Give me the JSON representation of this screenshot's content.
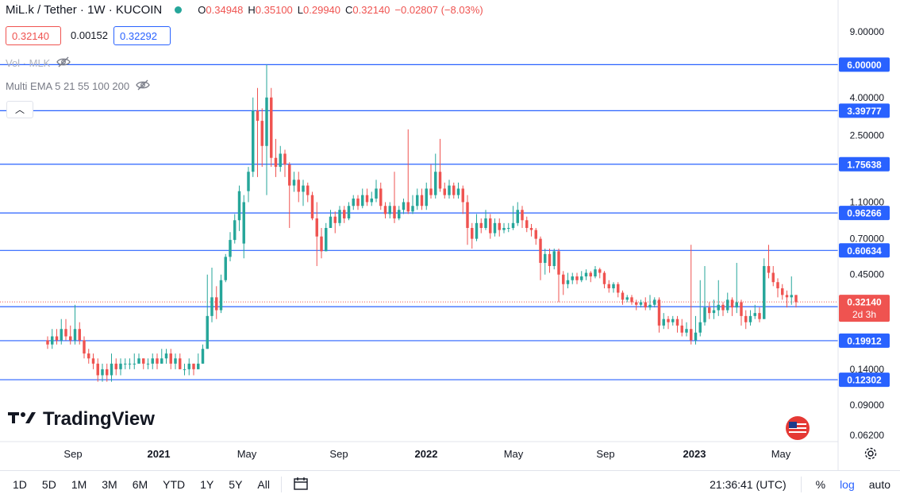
{
  "header": {
    "symbol": "MiL.k / Tether · 1W · KUCOIN",
    "ohlc": {
      "open_label": "O",
      "open": "0.34948",
      "high_label": "H",
      "high": "0.35100",
      "low_label": "L",
      "low": "0.29940",
      "close_label": "C",
      "close": "0.32140",
      "change": "−0.02807 (−8.03%)"
    },
    "status_color": "#26a69a"
  },
  "price_boxes": {
    "bid": "0.32140",
    "spread": "0.00152",
    "ask": "0.32292"
  },
  "indicators": [
    {
      "label": "Vol · MLK",
      "icon": "eye-crossed-icon"
    },
    {
      "label": "Multi EMA 5 21 55 100 200",
      "icon": "eye-crossed-icon"
    }
  ],
  "logo_text": "TradingView",
  "bottom": {
    "timeframes": [
      "1D",
      "5D",
      "1M",
      "3M",
      "6M",
      "YTD",
      "1Y",
      "5Y",
      "All"
    ],
    "time": "21:36:41 (UTC)",
    "percent": "%",
    "log": "log",
    "auto": "auto"
  },
  "chart_data": {
    "type": "candlestick",
    "scale": "log",
    "ylim": [
      0.062,
      9.0
    ],
    "y_ticks": [
      "9.00000",
      "4.00000",
      "2.50000",
      "1.10000",
      "0.70000",
      "0.45000",
      "0.14000",
      "0.09000",
      "0.06200"
    ],
    "x_ticks": [
      "Sep",
      "2021",
      "May",
      "Sep",
      "2022",
      "May",
      "Sep",
      "2023",
      "May"
    ],
    "up_color": "#26a69a",
    "down_color": "#ef5350",
    "level_color": "#2962ff",
    "levels": [
      "6.00000",
      "3.39777",
      "1.75638",
      "0.96266",
      "0.60634",
      "0.30291",
      "0.19912",
      "0.12302"
    ],
    "last_price": "0.32140",
    "countdown": "2d 3h",
    "candles": [
      [
        0.2,
        0.19,
        0.21,
        0.18
      ],
      [
        0.19,
        0.21,
        0.23,
        0.18
      ],
      [
        0.21,
        0.2,
        0.23,
        0.19
      ],
      [
        0.2,
        0.23,
        0.26,
        0.19
      ],
      [
        0.23,
        0.21,
        0.26,
        0.2
      ],
      [
        0.21,
        0.2,
        0.24,
        0.19
      ],
      [
        0.2,
        0.23,
        0.31,
        0.19
      ],
      [
        0.23,
        0.2,
        0.25,
        0.19
      ],
      [
        0.2,
        0.17,
        0.21,
        0.16
      ],
      [
        0.17,
        0.16,
        0.18,
        0.15
      ],
      [
        0.16,
        0.15,
        0.17,
        0.14
      ],
      [
        0.15,
        0.13,
        0.16,
        0.12
      ],
      [
        0.13,
        0.14,
        0.15,
        0.12
      ],
      [
        0.14,
        0.13,
        0.15,
        0.12
      ],
      [
        0.13,
        0.15,
        0.17,
        0.12
      ],
      [
        0.15,
        0.14,
        0.16,
        0.13
      ],
      [
        0.14,
        0.15,
        0.16,
        0.13
      ],
      [
        0.15,
        0.15,
        0.16,
        0.14
      ],
      [
        0.15,
        0.15,
        0.16,
        0.14
      ],
      [
        0.15,
        0.15,
        0.17,
        0.14
      ],
      [
        0.15,
        0.16,
        0.17,
        0.15
      ],
      [
        0.16,
        0.15,
        0.16,
        0.14
      ],
      [
        0.15,
        0.15,
        0.16,
        0.14
      ],
      [
        0.15,
        0.16,
        0.17,
        0.14
      ],
      [
        0.16,
        0.15,
        0.17,
        0.14
      ],
      [
        0.15,
        0.16,
        0.18,
        0.15
      ],
      [
        0.16,
        0.17,
        0.18,
        0.15
      ],
      [
        0.17,
        0.15,
        0.18,
        0.14
      ],
      [
        0.15,
        0.16,
        0.17,
        0.14
      ],
      [
        0.16,
        0.14,
        0.17,
        0.14
      ],
      [
        0.14,
        0.14,
        0.15,
        0.13
      ],
      [
        0.14,
        0.15,
        0.16,
        0.13
      ],
      [
        0.15,
        0.14,
        0.15,
        0.13
      ],
      [
        0.14,
        0.15,
        0.17,
        0.14
      ],
      [
        0.15,
        0.18,
        0.19,
        0.15
      ],
      [
        0.18,
        0.27,
        0.45,
        0.18
      ],
      [
        0.27,
        0.34,
        0.49,
        0.25
      ],
      [
        0.34,
        0.29,
        0.39,
        0.26
      ],
      [
        0.29,
        0.42,
        0.45,
        0.28
      ],
      [
        0.42,
        0.56,
        0.58,
        0.41
      ],
      [
        0.56,
        0.69,
        0.76,
        0.53
      ],
      [
        0.69,
        0.88,
        0.95,
        0.66
      ],
      [
        0.88,
        1.26,
        1.35,
        0.77
      ],
      [
        0.66,
        1.1,
        1.2,
        0.55
      ],
      [
        1.26,
        1.6,
        1.7,
        1.1
      ],
      [
        1.6,
        3.4,
        4.0,
        1.5
      ],
      [
        3.4,
        3.0,
        4.5,
        1.5
      ],
      [
        3.0,
        2.2,
        3.5,
        1.7
      ],
      [
        2.2,
        4.0,
        6.0,
        1.2
      ],
      [
        4.0,
        1.9,
        4.5,
        1.7
      ],
      [
        1.9,
        1.7,
        2.4,
        1.5
      ],
      [
        1.7,
        2.0,
        2.2,
        1.6
      ],
      [
        2.0,
        1.75,
        2.1,
        1.5
      ],
      [
        1.75,
        1.35,
        1.8,
        0.8
      ],
      [
        1.35,
        1.45,
        1.6,
        1.25
      ],
      [
        1.45,
        1.25,
        1.6,
        1.1
      ],
      [
        1.25,
        1.35,
        1.45,
        1.05
      ],
      [
        1.35,
        1.2,
        1.4,
        1.1
      ],
      [
        1.2,
        0.9,
        1.25,
        0.88
      ],
      [
        0.9,
        0.72,
        1.1,
        0.5
      ],
      [
        0.72,
        0.6,
        0.8,
        0.55
      ],
      [
        0.6,
        0.8,
        0.85,
        0.6
      ],
      [
        0.8,
        0.92,
        1.0,
        0.8
      ],
      [
        0.92,
        0.85,
        0.98,
        0.75
      ],
      [
        0.85,
        1.0,
        1.05,
        0.82
      ],
      [
        1.0,
        0.9,
        1.05,
        0.85
      ],
      [
        0.9,
        1.05,
        1.1,
        0.88
      ],
      [
        1.05,
        1.15,
        1.2,
        1.0
      ],
      [
        1.15,
        1.05,
        1.2,
        1.0
      ],
      [
        1.05,
        1.2,
        1.3,
        1.02
      ],
      [
        1.2,
        1.1,
        1.3,
        1.05
      ],
      [
        1.1,
        1.15,
        1.25,
        1.05
      ],
      [
        1.15,
        1.3,
        1.45,
        1.1
      ],
      [
        1.3,
        1.05,
        1.4,
        1.0
      ],
      [
        1.05,
        0.95,
        1.1,
        0.9
      ],
      [
        0.95,
        1.05,
        1.1,
        0.9
      ],
      [
        1.05,
        0.9,
        1.6,
        0.85
      ],
      [
        0.9,
        1.0,
        1.05,
        0.88
      ],
      [
        1.0,
        1.1,
        1.15,
        0.95
      ],
      [
        1.1,
        0.98,
        2.7,
        0.95
      ],
      [
        0.98,
        1.05,
        1.2,
        0.95
      ],
      [
        1.05,
        1.2,
        1.3,
        1.0
      ],
      [
        1.2,
        1.05,
        1.3,
        1.0
      ],
      [
        1.05,
        1.3,
        1.4,
        1.0
      ],
      [
        1.3,
        1.2,
        1.75,
        1.15
      ],
      [
        1.2,
        1.6,
        2.0,
        1.15
      ],
      [
        1.6,
        1.3,
        2.4,
        1.25
      ],
      [
        1.3,
        1.2,
        1.4,
        1.15
      ],
      [
        1.2,
        1.35,
        1.45,
        1.15
      ],
      [
        1.35,
        1.2,
        1.4,
        1.15
      ],
      [
        1.2,
        1.3,
        1.4,
        1.15
      ],
      [
        1.3,
        1.1,
        1.35,
        0.95
      ],
      [
        1.1,
        0.8,
        1.2,
        0.65
      ],
      [
        0.8,
        0.7,
        0.85,
        0.62
      ],
      [
        0.7,
        0.85,
        0.95,
        0.68
      ],
      [
        0.85,
        0.8,
        0.9,
        0.75
      ],
      [
        0.8,
        0.9,
        1.0,
        0.78
      ],
      [
        0.9,
        0.75,
        0.95,
        0.7
      ],
      [
        0.75,
        0.85,
        0.9,
        0.72
      ],
      [
        0.85,
        0.78,
        0.9,
        0.72
      ],
      [
        0.78,
        0.8,
        0.85,
        0.75
      ],
      [
        0.8,
        0.8,
        0.85,
        0.76
      ],
      [
        0.8,
        0.85,
        1.05,
        0.78
      ],
      [
        0.85,
        1.0,
        1.1,
        0.82
      ],
      [
        1.0,
        0.88,
        1.05,
        0.8
      ],
      [
        0.88,
        0.8,
        0.92,
        0.76
      ],
      [
        0.8,
        0.78,
        0.84,
        0.72
      ],
      [
        0.78,
        0.7,
        0.8,
        0.65
      ],
      [
        0.7,
        0.52,
        0.72,
        0.42
      ],
      [
        0.52,
        0.58,
        0.62,
        0.45
      ],
      [
        0.58,
        0.5,
        0.62,
        0.46
      ],
      [
        0.5,
        0.6,
        0.62,
        0.48
      ],
      [
        0.6,
        0.45,
        0.62,
        0.32
      ],
      [
        0.45,
        0.4,
        0.47,
        0.35
      ],
      [
        0.4,
        0.42,
        0.46,
        0.38
      ],
      [
        0.42,
        0.44,
        0.46,
        0.4
      ],
      [
        0.44,
        0.42,
        0.46,
        0.4
      ],
      [
        0.42,
        0.44,
        0.47,
        0.41
      ],
      [
        0.44,
        0.46,
        0.48,
        0.42
      ],
      [
        0.46,
        0.44,
        0.47,
        0.41
      ],
      [
        0.44,
        0.48,
        0.5,
        0.43
      ],
      [
        0.48,
        0.46,
        0.49,
        0.43
      ],
      [
        0.46,
        0.4,
        0.47,
        0.38
      ],
      [
        0.4,
        0.38,
        0.42,
        0.36
      ],
      [
        0.38,
        0.4,
        0.41,
        0.36
      ],
      [
        0.4,
        0.36,
        0.41,
        0.34
      ],
      [
        0.36,
        0.33,
        0.37,
        0.31
      ],
      [
        0.33,
        0.34,
        0.35,
        0.32
      ],
      [
        0.34,
        0.32,
        0.35,
        0.31
      ],
      [
        0.32,
        0.31,
        0.33,
        0.29
      ],
      [
        0.31,
        0.32,
        0.33,
        0.3
      ],
      [
        0.32,
        0.3,
        0.34,
        0.29
      ],
      [
        0.3,
        0.31,
        0.35,
        0.29
      ],
      [
        0.31,
        0.33,
        0.34,
        0.3
      ],
      [
        0.33,
        0.24,
        0.34,
        0.22
      ],
      [
        0.24,
        0.26,
        0.28,
        0.23
      ],
      [
        0.26,
        0.25,
        0.27,
        0.23
      ],
      [
        0.25,
        0.26,
        0.27,
        0.24
      ],
      [
        0.26,
        0.24,
        0.27,
        0.22
      ],
      [
        0.24,
        0.22,
        0.26,
        0.21
      ],
      [
        0.22,
        0.23,
        0.25,
        0.21
      ],
      [
        0.23,
        0.2,
        0.65,
        0.19
      ],
      [
        0.2,
        0.22,
        0.27,
        0.19
      ],
      [
        0.22,
        0.25,
        0.42,
        0.21
      ],
      [
        0.25,
        0.3,
        0.5,
        0.24
      ],
      [
        0.3,
        0.28,
        0.32,
        0.26
      ],
      [
        0.28,
        0.29,
        0.33,
        0.26
      ],
      [
        0.29,
        0.31,
        0.42,
        0.27
      ],
      [
        0.31,
        0.29,
        0.32,
        0.27
      ],
      [
        0.29,
        0.33,
        0.36,
        0.28
      ],
      [
        0.33,
        0.3,
        0.34,
        0.27
      ],
      [
        0.3,
        0.32,
        0.52,
        0.28
      ],
      [
        0.32,
        0.27,
        0.33,
        0.24
      ],
      [
        0.27,
        0.25,
        0.29,
        0.23
      ],
      [
        0.25,
        0.27,
        0.29,
        0.24
      ],
      [
        0.27,
        0.28,
        0.31,
        0.26
      ],
      [
        0.28,
        0.26,
        0.3,
        0.25
      ],
      [
        0.26,
        0.5,
        0.55,
        0.26
      ],
      [
        0.5,
        0.46,
        0.65,
        0.43
      ],
      [
        0.46,
        0.41,
        0.5,
        0.39
      ],
      [
        0.41,
        0.38,
        0.43,
        0.34
      ],
      [
        0.38,
        0.35,
        0.4,
        0.33
      ],
      [
        0.35,
        0.34,
        0.37,
        0.3
      ],
      [
        0.34,
        0.35,
        0.44,
        0.31
      ],
      [
        0.35,
        0.32,
        0.35,
        0.3
      ]
    ]
  }
}
